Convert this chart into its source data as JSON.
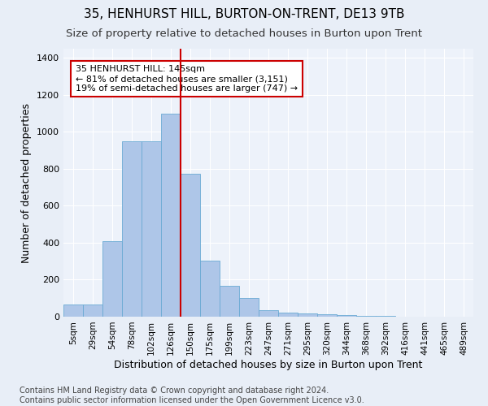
{
  "title1": "35, HENHURST HILL, BURTON-ON-TRENT, DE13 9TB",
  "title2": "Size of property relative to detached houses in Burton upon Trent",
  "xlabel": "Distribution of detached houses by size in Burton upon Trent",
  "ylabel": "Number of detached properties",
  "footnote": "Contains HM Land Registry data © Crown copyright and database right 2024.\nContains public sector information licensed under the Open Government Licence v3.0.",
  "bin_labels": [
    "5sqm",
    "29sqm",
    "54sqm",
    "78sqm",
    "102sqm",
    "126sqm",
    "150sqm",
    "175sqm",
    "199sqm",
    "223sqm",
    "247sqm",
    "271sqm",
    "295sqm",
    "320sqm",
    "344sqm",
    "368sqm",
    "392sqm",
    "416sqm",
    "441sqm",
    "465sqm",
    "489sqm"
  ],
  "bar_values": [
    65,
    65,
    410,
    950,
    950,
    1100,
    775,
    305,
    165,
    100,
    35,
    20,
    17,
    12,
    10,
    5,
    3,
    2,
    1,
    1,
    0
  ],
  "bar_color": "#aec6e8",
  "bar_edge_color": "#6aaad4",
  "vline_color": "#cc0000",
  "annotation_text": "35 HENHURST HILL: 145sqm\n← 81% of detached houses are smaller (3,151)\n19% of semi-detached houses are larger (747) →",
  "annotation_box_color": "#cc0000",
  "ylim": [
    0,
    1450
  ],
  "yticks": [
    0,
    200,
    400,
    600,
    800,
    1000,
    1200,
    1400
  ],
  "bg_color": "#e8eef7",
  "plot_bg_color": "#edf2fa",
  "grid_color": "#ffffff",
  "title1_fontsize": 11,
  "title2_fontsize": 9.5,
  "xlabel_fontsize": 9,
  "ylabel_fontsize": 9,
  "annot_fontsize": 8,
  "footnote_fontsize": 7,
  "tick_fontsize": 8
}
